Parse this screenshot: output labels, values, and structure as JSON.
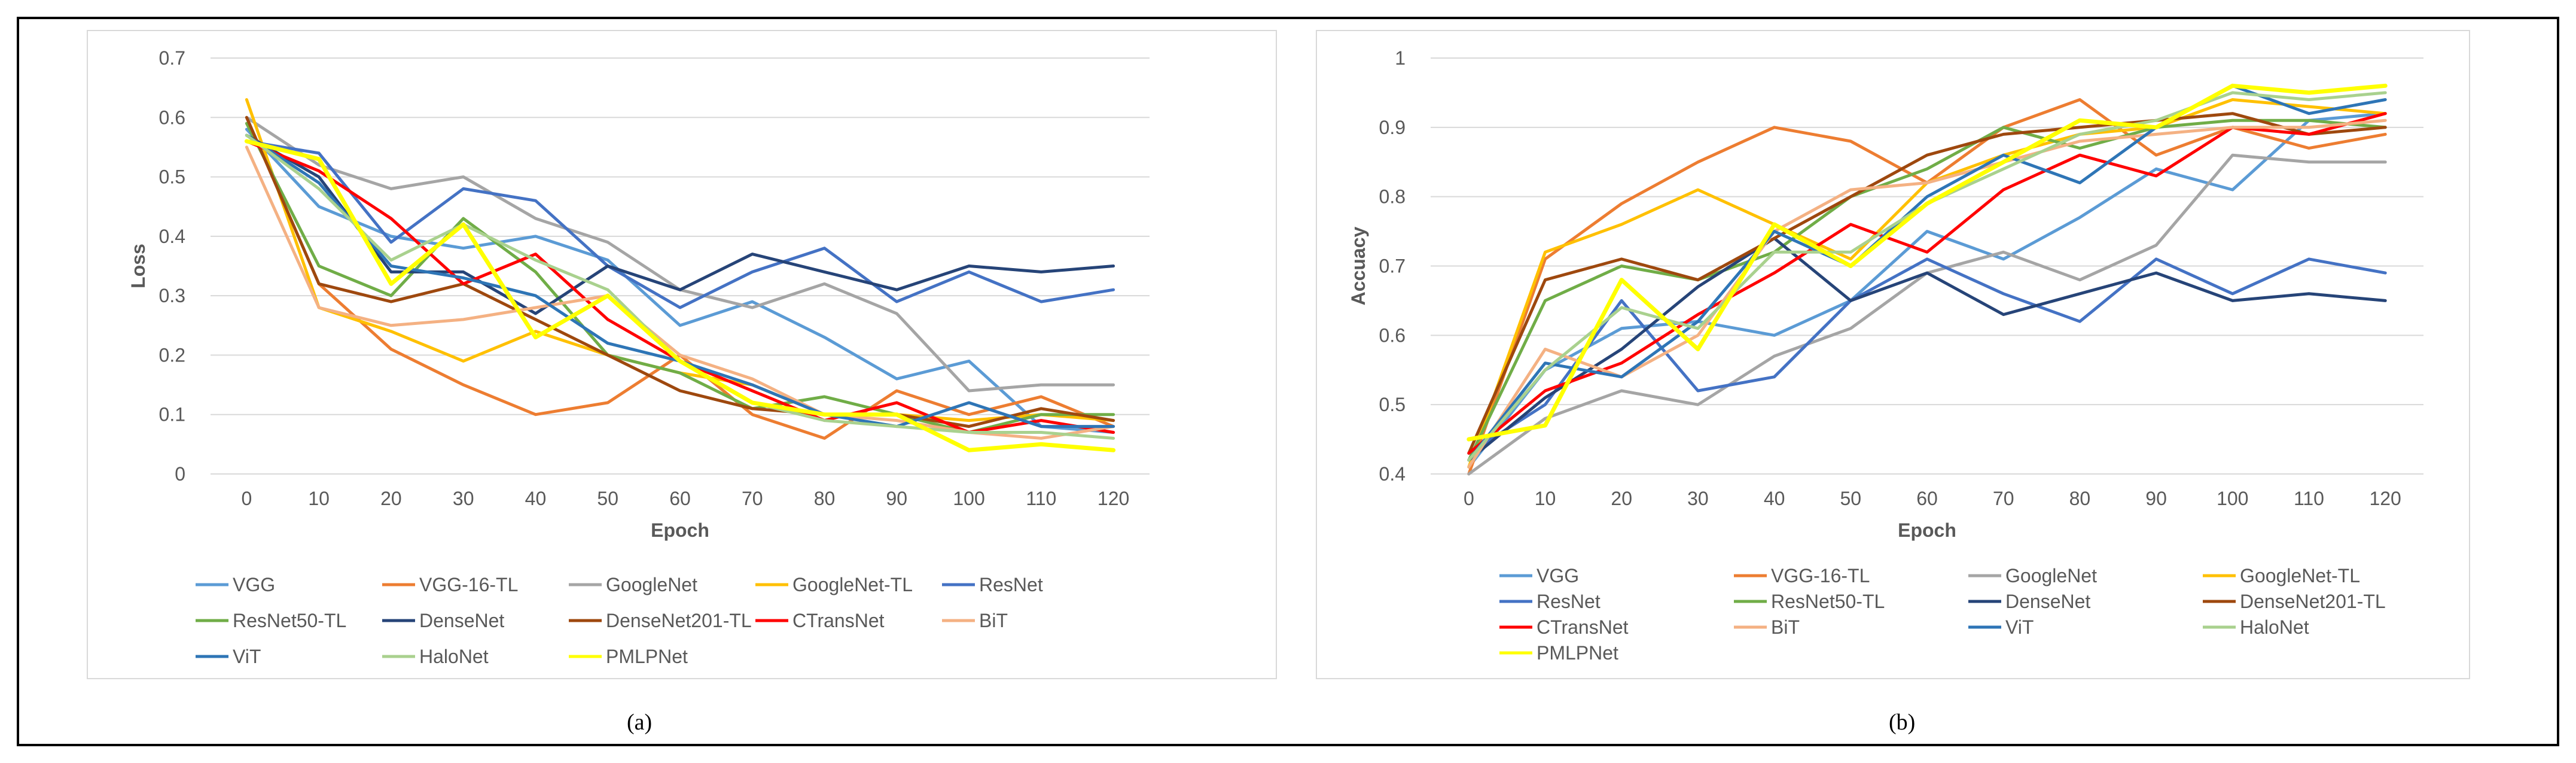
{
  "chart_data": [
    {
      "type": "line",
      "panel_label": "(a)",
      "xlabel": "Epoch",
      "ylabel": "Loss",
      "x": [
        0,
        10,
        20,
        30,
        40,
        50,
        60,
        70,
        80,
        90,
        100,
        110,
        120
      ],
      "ylim": [
        0,
        0.7
      ],
      "yticks": [
        "0",
        "0.1",
        "0.2",
        "0.3",
        "0.4",
        "0.5",
        "0.6",
        "0.7"
      ],
      "grid": true,
      "legend_position": "bottom",
      "series": [
        {
          "name": "VGG",
          "color": "#5B9BD5",
          "values": [
            0.58,
            0.45,
            0.4,
            0.38,
            0.4,
            0.36,
            0.25,
            0.29,
            0.23,
            0.16,
            0.19,
            0.08,
            0.07
          ]
        },
        {
          "name": "VGG-16-TL",
          "color": "#ED7D31",
          "values": [
            0.6,
            0.32,
            0.21,
            0.15,
            0.1,
            0.12,
            0.2,
            0.1,
            0.06,
            0.14,
            0.1,
            0.13,
            0.08
          ]
        },
        {
          "name": "GoogleNet",
          "color": "#A5A5A5",
          "values": [
            0.6,
            0.52,
            0.48,
            0.5,
            0.43,
            0.39,
            0.31,
            0.28,
            0.32,
            0.27,
            0.14,
            0.15,
            0.15
          ]
        },
        {
          "name": "GoogleNet-TL",
          "color": "#FFC000",
          "values": [
            0.63,
            0.28,
            0.24,
            0.19,
            0.24,
            0.2,
            0.17,
            0.15,
            0.1,
            0.1,
            0.09,
            0.1,
            0.09
          ]
        },
        {
          "name": "ResNet",
          "color": "#4472C4",
          "values": [
            0.56,
            0.54,
            0.39,
            0.48,
            0.46,
            0.35,
            0.28,
            0.34,
            0.38,
            0.29,
            0.34,
            0.29,
            0.31
          ]
        },
        {
          "name": "ResNet50-TL",
          "color": "#70AD47",
          "values": [
            0.59,
            0.35,
            0.3,
            0.43,
            0.34,
            0.2,
            0.17,
            0.11,
            0.13,
            0.1,
            0.07,
            0.1,
            0.1
          ]
        },
        {
          "name": "DenseNet",
          "color": "#264478",
          "values": [
            0.57,
            0.5,
            0.34,
            0.34,
            0.27,
            0.35,
            0.31,
            0.37,
            0.34,
            0.31,
            0.35,
            0.34,
            0.35
          ]
        },
        {
          "name": "DenseNet201-TL",
          "color": "#9E480E",
          "values": [
            0.6,
            0.32,
            0.29,
            0.32,
            0.26,
            0.2,
            0.14,
            0.11,
            0.1,
            0.1,
            0.08,
            0.11,
            0.09
          ]
        },
        {
          "name": "CTransNet",
          "color": "#FF0000",
          "values": [
            0.56,
            0.51,
            0.43,
            0.32,
            0.37,
            0.26,
            0.19,
            0.14,
            0.09,
            0.12,
            0.07,
            0.09,
            0.07
          ]
        },
        {
          "name": "BiT",
          "color": "#F4B183",
          "values": [
            0.55,
            0.28,
            0.25,
            0.26,
            0.28,
            0.3,
            0.2,
            0.16,
            0.1,
            0.09,
            0.07,
            0.06,
            0.08
          ]
        },
        {
          "name": "ViT",
          "color": "#2E75B6",
          "values": [
            0.57,
            0.49,
            0.35,
            0.33,
            0.3,
            0.22,
            0.19,
            0.15,
            0.1,
            0.08,
            0.12,
            0.08,
            0.08
          ]
        },
        {
          "name": "HaloNet",
          "color": "#A9D18E",
          "values": [
            0.57,
            0.48,
            0.36,
            0.42,
            0.36,
            0.31,
            0.19,
            0.12,
            0.09,
            0.08,
            0.07,
            0.07,
            0.06
          ]
        },
        {
          "name": "PMLPNet",
          "color": "#FFFF00",
          "values": [
            0.56,
            0.53,
            0.32,
            0.42,
            0.23,
            0.3,
            0.19,
            0.12,
            0.1,
            0.1,
            0.04,
            0.05,
            0.04
          ]
        }
      ]
    },
    {
      "type": "line",
      "panel_label": "(b)",
      "xlabel": "Epoch",
      "ylabel": "Accuacy",
      "x": [
        0,
        10,
        20,
        30,
        40,
        50,
        60,
        70,
        80,
        90,
        100,
        110,
        120
      ],
      "ylim": [
        0.4,
        1.0
      ],
      "yticks": [
        "0.4",
        "0.5",
        "0.6",
        "0.7",
        "0.8",
        "0.9",
        "1"
      ],
      "grid": true,
      "legend_position": "bottom",
      "series": [
        {
          "name": "VGG",
          "color": "#5B9BD5",
          "values": [
            0.41,
            0.55,
            0.61,
            0.62,
            0.6,
            0.65,
            0.75,
            0.71,
            0.77,
            0.84,
            0.81,
            0.91,
            0.92
          ]
        },
        {
          "name": "VGG-16-TL",
          "color": "#ED7D31",
          "values": [
            0.4,
            0.71,
            0.79,
            0.85,
            0.9,
            0.88,
            0.82,
            0.9,
            0.94,
            0.86,
            0.9,
            0.87,
            0.89
          ]
        },
        {
          "name": "GoogleNet",
          "color": "#A5A5A5",
          "values": [
            0.4,
            0.48,
            0.52,
            0.5,
            0.57,
            0.61,
            0.69,
            0.72,
            0.68,
            0.73,
            0.86,
            0.85,
            0.85
          ]
        },
        {
          "name": "GoogleNet-TL",
          "color": "#FFC000",
          "values": [
            0.41,
            0.72,
            0.76,
            0.81,
            0.76,
            0.71,
            0.82,
            0.86,
            0.89,
            0.9,
            0.94,
            0.93,
            0.92
          ]
        },
        {
          "name": "ResNet",
          "color": "#4472C4",
          "values": [
            0.43,
            0.5,
            0.65,
            0.52,
            0.54,
            0.65,
            0.71,
            0.66,
            0.62,
            0.71,
            0.66,
            0.71,
            0.69
          ]
        },
        {
          "name": "ResNet50-TL",
          "color": "#70AD47",
          "values": [
            0.42,
            0.65,
            0.7,
            0.68,
            0.72,
            0.8,
            0.84,
            0.9,
            0.87,
            0.9,
            0.91,
            0.91,
            0.9
          ]
        },
        {
          "name": "DenseNet",
          "color": "#264478",
          "values": [
            0.42,
            0.51,
            0.58,
            0.67,
            0.74,
            0.65,
            0.69,
            0.63,
            0.66,
            0.69,
            0.65,
            0.66,
            0.65
          ]
        },
        {
          "name": "DenseNet201-TL",
          "color": "#9E480E",
          "values": [
            0.43,
            0.68,
            0.71,
            0.68,
            0.74,
            0.8,
            0.86,
            0.89,
            0.9,
            0.91,
            0.92,
            0.89,
            0.9
          ]
        },
        {
          "name": "CTransNet",
          "color": "#FF0000",
          "values": [
            0.43,
            0.52,
            0.56,
            0.63,
            0.69,
            0.76,
            0.72,
            0.81,
            0.86,
            0.83,
            0.9,
            0.89,
            0.92
          ]
        },
        {
          "name": "BiT",
          "color": "#F4B183",
          "values": [
            0.41,
            0.58,
            0.54,
            0.6,
            0.75,
            0.81,
            0.82,
            0.85,
            0.88,
            0.89,
            0.9,
            0.9,
            0.91
          ]
        },
        {
          "name": "ViT",
          "color": "#2E75B6",
          "values": [
            0.42,
            0.56,
            0.54,
            0.62,
            0.75,
            0.7,
            0.8,
            0.86,
            0.82,
            0.9,
            0.96,
            0.92,
            0.94
          ]
        },
        {
          "name": "HaloNet",
          "color": "#A9D18E",
          "values": [
            0.42,
            0.55,
            0.64,
            0.61,
            0.72,
            0.72,
            0.79,
            0.84,
            0.89,
            0.91,
            0.95,
            0.94,
            0.95
          ]
        },
        {
          "name": "PMLPNet",
          "color": "#FFFF00",
          "values": [
            0.45,
            0.47,
            0.68,
            0.58,
            0.76,
            0.7,
            0.79,
            0.85,
            0.91,
            0.9,
            0.96,
            0.95,
            0.96
          ]
        }
      ]
    }
  ]
}
